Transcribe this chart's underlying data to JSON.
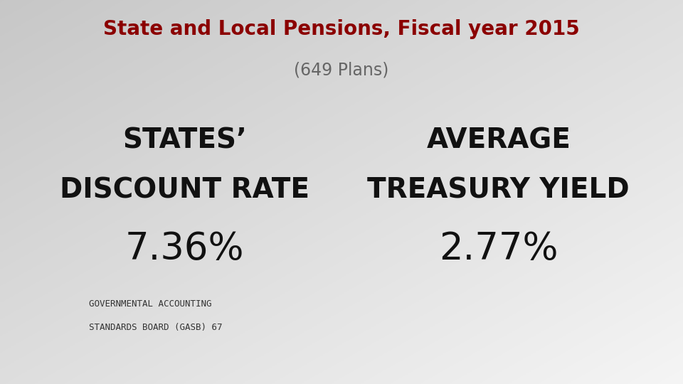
{
  "title_line1": "State and Local Pensions, Fiscal year 2015",
  "title_line2": "(649 Plans)",
  "title_color": "#8B0000",
  "subtitle_color": "#666666",
  "title_fontsize": 20,
  "subtitle_fontsize": 17,
  "label_left_line1": "STATES’",
  "label_left_line2": "DISCOUNT RATE",
  "label_right_line1": "AVERAGE",
  "label_right_line2": "TREASURY YIELD",
  "label_fontsize": 28,
  "label_color": "#111111",
  "value_left": "7.36%",
  "value_right": "2.77%",
  "value_fontsize": 38,
  "value_color": "#111111",
  "footnote_line1": "GOVERNMENTAL ACCOUNTING",
  "footnote_line2": "STANDARDS BOARD (GASB) 67",
  "footnote_fontsize": 9,
  "footnote_color": "#333333",
  "bg_top_left": "#c8c8c8",
  "bg_bottom_right": "#f4f4f4"
}
